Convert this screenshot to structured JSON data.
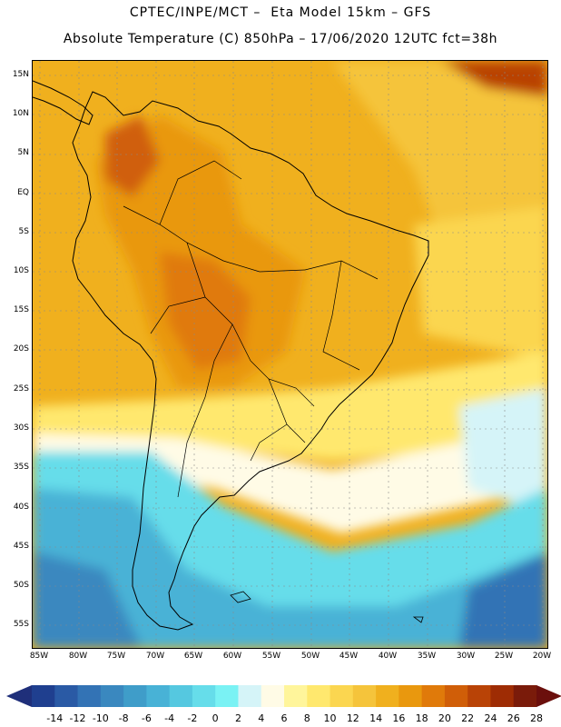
{
  "header": {
    "line1": "CPTEC/INPE/MCT –  Eta Model 15km – GFS",
    "line2": "Absolute Temperature (C) 850hPa – 17/06/2020 12UTC fct=38h"
  },
  "latitude_labels": [
    "15N",
    "10N",
    "5N",
    "EQ",
    "5S",
    "10S",
    "15S",
    "20S",
    "25S",
    "30S",
    "35S",
    "40S",
    "45S",
    "50S",
    "55S"
  ],
  "longitude_labels": [
    "85W",
    "80W",
    "75W",
    "70W",
    "65W",
    "60W",
    "55W",
    "50W",
    "45W",
    "40W",
    "35W",
    "30W",
    "25W",
    "20W"
  ],
  "colorbar": {
    "labels": [
      "-14",
      "-12",
      "-10",
      "-8",
      "-6",
      "-4",
      "-2",
      "0",
      "2",
      "4",
      "6",
      "8",
      "10",
      "12",
      "14",
      "16",
      "18",
      "20",
      "22",
      "24",
      "26",
      "28"
    ],
    "colors": [
      "#1f3f8f",
      "#2a5aa5",
      "#3373b5",
      "#3a88bf",
      "#3f9dc9",
      "#48b2d6",
      "#55c8e0",
      "#66ddea",
      "#7af2f4",
      "#d5f4f8",
      "#fffbe6",
      "#fff59b",
      "#ffe86e",
      "#fbd650",
      "#f5c43b",
      "#f0b01e",
      "#e9980e",
      "#e07a0a",
      "#d05e08",
      "#b94306",
      "#9e2c04",
      "#7a1b0a"
    ],
    "under_color": "#1f2f7a",
    "over_color": "#6b0f0c"
  },
  "legend_colors": {
    "frame": "#000000",
    "coast": "#000000"
  }
}
